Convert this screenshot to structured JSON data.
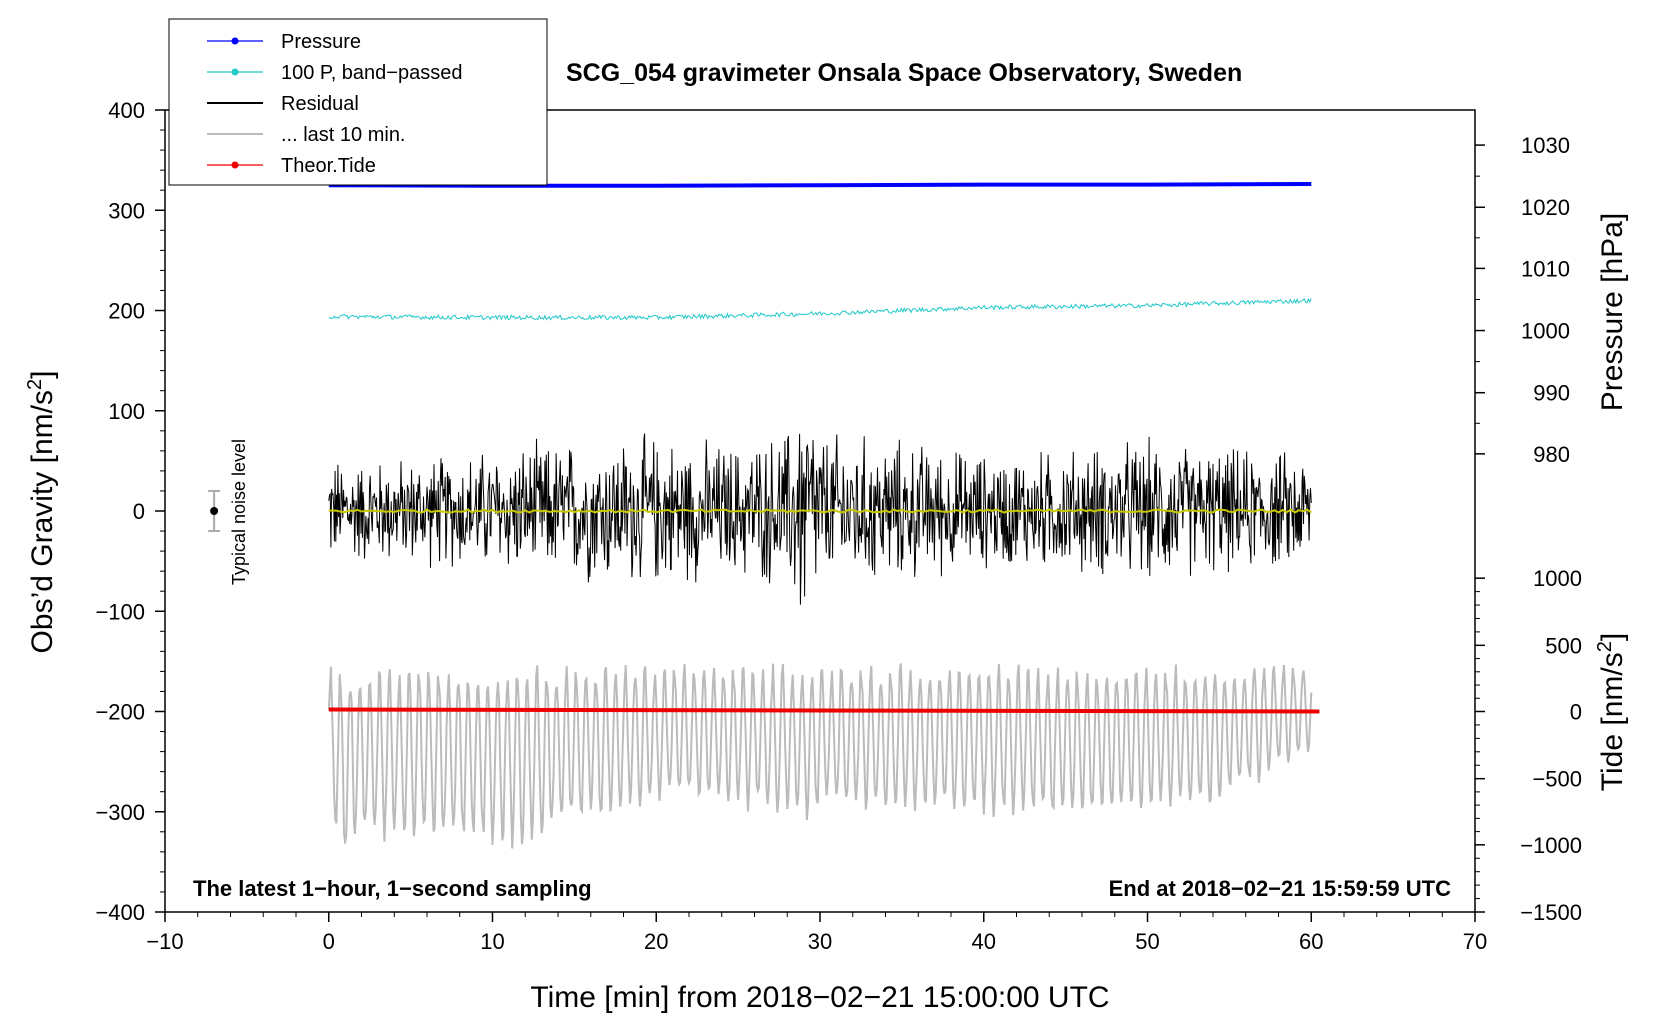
{
  "chart_data": {
    "type": "line",
    "title": "SCG_054 gravimeter Onsala Space Observatory, Sweden",
    "xlabel": "Time [min] from 2018−02−21 15:00:00 UTC",
    "ylabel_left_prefix": "Obs’d Gravity [nm/s",
    "ylabel_left_sup": "2",
    "ylabel_left_suffix": "]",
    "ylabel_right_top": "Pressure [hPa]",
    "ylabel_right_bottom_prefix": "Tide [nm/s",
    "ylabel_right_bottom_sup": "2",
    "ylabel_right_bottom_suffix": "]",
    "xlim": [
      -10,
      70
    ],
    "ylim": [
      -400,
      400
    ],
    "x_ticks": [
      -10,
      0,
      10,
      20,
      30,
      40,
      50,
      60,
      70
    ],
    "x_tick_labels": [
      "−10",
      "0",
      "10",
      "20",
      "30",
      "40",
      "50",
      "60",
      "70"
    ],
    "y_ticks": [
      400,
      300,
      200,
      100,
      0,
      -100,
      -200,
      -300,
      -400
    ],
    "y_tick_labels": [
      "400",
      "300",
      "200",
      "100",
      "0",
      "−100",
      "−200",
      "−300",
      "−400"
    ],
    "pressure_ticks": [
      1030,
      1020,
      1010,
      1000,
      990,
      980
    ],
    "pressure_tick_labels": [
      "1030",
      "1020",
      "1010",
      "1000",
      "990",
      "980"
    ],
    "pressure_gravity_equiv": [
      365,
      303,
      242,
      180,
      118,
      57
    ],
    "tide_ticks": [
      1000,
      500,
      0,
      -500,
      -1000,
      -1500
    ],
    "tide_tick_labels": [
      "1000",
      "500",
      "0",
      "−500",
      "−1000",
      "−1500"
    ],
    "tide_gravity_equiv": [
      -67,
      -134,
      -200,
      -267,
      -333,
      -400
    ],
    "annotation_left": "The latest 1−hour, 1−second sampling",
    "annotation_right": "End at 2018−02−21 15:59:59 UTC",
    "noise_label": "Typical noise level",
    "noise_bar": {
      "x": -7,
      "y": 0,
      "half_range": 20
    },
    "legend_position": "top-left",
    "legend": [
      {
        "label": "Pressure",
        "color": "#0000ff",
        "style": "line-dot"
      },
      {
        "label": "100 P, band−passed",
        "color": "#20c8c8",
        "style": "line-dot"
      },
      {
        "label": "Residual",
        "color": "#000000",
        "style": "line"
      },
      {
        "label": "... last 10 min.",
        "color": "#bbbbbb",
        "style": "line"
      },
      {
        "label": "Theor.Tide",
        "color": "#ee0000",
        "style": "line-dot"
      }
    ],
    "series": [
      {
        "name": "Pressure",
        "color": "#0000ff",
        "axis": "pressure_hPa",
        "x": [
          0,
          10,
          20,
          30,
          40,
          50,
          60
        ],
        "values": [
          1023.5,
          1023.4,
          1023.4,
          1023.5,
          1023.6,
          1023.6,
          1023.7
        ]
      },
      {
        "name": "100 P, band−passed",
        "color": "#20c8c8",
        "axis": "gravity",
        "x": [
          0,
          10,
          20,
          30,
          40,
          50,
          60
        ],
        "values": [
          194,
          193,
          193,
          197,
          203,
          205,
          210
        ]
      },
      {
        "name": "Residual envelope",
        "color": "#000000",
        "axis": "gravity",
        "x": [
          0,
          5,
          10,
          15,
          20,
          25,
          28,
          29,
          30,
          35,
          40,
          45,
          50,
          55,
          60
        ],
        "values": [
          60,
          60,
          70,
          80,
          85,
          75,
          90,
          150,
          90,
          80,
          65,
          70,
          80,
          70,
          65
        ]
      },
      {
        "name": "Residual mean",
        "color": "#c8c800",
        "axis": "gravity",
        "x": [
          0,
          60
        ],
        "values": [
          0,
          0
        ]
      },
      {
        "name": "Theor.Tide",
        "color": "#ee0000",
        "axis": "gravity",
        "x": [
          0,
          60.5
        ],
        "values": [
          -198,
          -200
        ]
      },
      {
        "name": "... last 10 min.",
        "color": "#bbbbbb",
        "axis": "gravity",
        "x": [
          0,
          1,
          2,
          13,
          14,
          22,
          29,
          31,
          44,
          54,
          60
        ],
        "values": [
          -300,
          -360,
          -330,
          -340,
          -320,
          -290,
          -310,
          -300,
          -310,
          -300,
          -240
        ]
      }
    ],
    "colors": {
      "axis": "#000000",
      "background": "#ffffff"
    }
  }
}
